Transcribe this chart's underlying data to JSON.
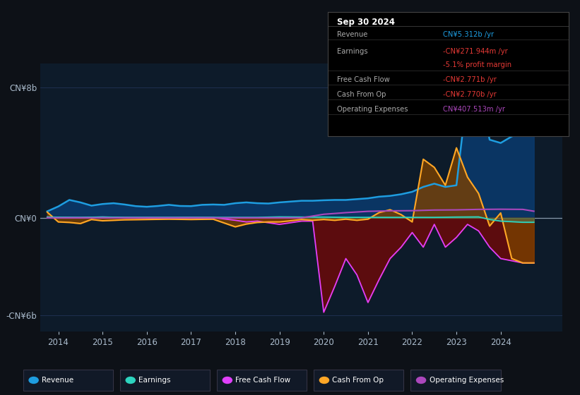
{
  "bg_color": "#0d1117",
  "plot_bg_color": "#0d1b2a",
  "legend_bg_color": "#111927",
  "grid_color": "#1e3050",
  "yticks_labels": [
    "CN¥8b",
    "CN¥0",
    "-CN¥6b"
  ],
  "yticks_values": [
    8000000000,
    0,
    -6000000000
  ],
  "ylim": [
    -7000000000,
    9500000000
  ],
  "xlim_start": 2013.6,
  "xlim_end": 2025.4,
  "xticks": [
    2014,
    2015,
    2016,
    2017,
    2018,
    2019,
    2020,
    2021,
    2022,
    2023,
    2024
  ],
  "legend": [
    {
      "label": "Revenue",
      "color": "#1e9de0"
    },
    {
      "label": "Earnings",
      "color": "#2dd4bf"
    },
    {
      "label": "Free Cash Flow",
      "color": "#e040fb"
    },
    {
      "label": "Cash From Op",
      "color": "#ffa726"
    },
    {
      "label": "Operating Expenses",
      "color": "#ab47bc"
    }
  ],
  "tooltip": {
    "date": "Sep 30 2024",
    "rows": [
      {
        "label": "Revenue",
        "value": "CN¥5.312b /yr",
        "value_color": "#1e9de0",
        "sub": null
      },
      {
        "label": "Earnings",
        "value": "-CN¥271.944m /yr",
        "value_color": "#e53935",
        "sub": "-5.1% profit margin",
        "sub_color": "#e53935"
      },
      {
        "label": "Free Cash Flow",
        "value": "-CN¥2.771b /yr",
        "value_color": "#e53935",
        "sub": null
      },
      {
        "label": "Cash From Op",
        "value": "-CN¥2.770b /yr",
        "value_color": "#e53935",
        "sub": null
      },
      {
        "label": "Operating Expenses",
        "value": "CN¥407.513m /yr",
        "value_color": "#ab47bc",
        "sub": null
      }
    ]
  },
  "revenue_x": [
    2013.75,
    2014.0,
    2014.25,
    2014.5,
    2014.75,
    2015.0,
    2015.25,
    2015.5,
    2015.75,
    2016.0,
    2016.25,
    2016.5,
    2016.75,
    2017.0,
    2017.25,
    2017.5,
    2017.75,
    2018.0,
    2018.25,
    2018.5,
    2018.75,
    2019.0,
    2019.25,
    2019.5,
    2019.75,
    2020.0,
    2020.25,
    2020.5,
    2020.75,
    2021.0,
    2021.25,
    2021.5,
    2021.75,
    2022.0,
    2022.25,
    2022.5,
    2022.75,
    2023.0,
    2023.25,
    2023.5,
    2023.75,
    2024.0,
    2024.25,
    2024.5,
    2024.75
  ],
  "revenue_y": [
    400000000,
    700000000,
    1100000000,
    950000000,
    750000000,
    850000000,
    900000000,
    820000000,
    720000000,
    680000000,
    730000000,
    800000000,
    730000000,
    720000000,
    800000000,
    820000000,
    800000000,
    900000000,
    950000000,
    900000000,
    880000000,
    950000000,
    1000000000,
    1050000000,
    1050000000,
    1080000000,
    1100000000,
    1100000000,
    1150000000,
    1200000000,
    1300000000,
    1350000000,
    1450000000,
    1600000000,
    1900000000,
    2100000000,
    1900000000,
    2000000000,
    7800000000,
    8200000000,
    4800000000,
    4600000000,
    5000000000,
    5312000000,
    5312000000
  ],
  "earnings_x": [
    2013.75,
    2014.0,
    2014.5,
    2015.0,
    2015.5,
    2016.0,
    2016.5,
    2017.0,
    2017.5,
    2018.0,
    2018.5,
    2019.0,
    2019.5,
    2020.0,
    2020.5,
    2021.0,
    2021.5,
    2022.0,
    2022.5,
    2023.0,
    2023.5,
    2023.75,
    2024.0,
    2024.5,
    2024.75
  ],
  "earnings_y": [
    50000000,
    40000000,
    30000000,
    50000000,
    30000000,
    30000000,
    30000000,
    30000000,
    30000000,
    30000000,
    30000000,
    60000000,
    50000000,
    50000000,
    30000000,
    30000000,
    30000000,
    30000000,
    30000000,
    50000000,
    60000000,
    -100000000,
    -200000000,
    -271944000,
    -271944000
  ],
  "fcf_x": [
    2013.75,
    2014.0,
    2014.5,
    2015.0,
    2015.5,
    2016.0,
    2016.5,
    2017.0,
    2017.5,
    2018.0,
    2018.25,
    2018.5,
    2019.0,
    2019.25,
    2019.5,
    2019.75,
    2020.0,
    2020.25,
    2020.5,
    2020.75,
    2021.0,
    2021.25,
    2021.5,
    2021.75,
    2022.0,
    2022.25,
    2022.5,
    2022.75,
    2023.0,
    2023.25,
    2023.5,
    2023.75,
    2024.0,
    2024.5,
    2024.75
  ],
  "fcf_y": [
    50000000,
    30000000,
    20000000,
    50000000,
    20000000,
    20000000,
    20000000,
    30000000,
    20000000,
    -150000000,
    -250000000,
    -200000000,
    -400000000,
    -300000000,
    -200000000,
    -200000000,
    -5800000000,
    -4200000000,
    -2500000000,
    -3500000000,
    -5200000000,
    -3800000000,
    -2500000000,
    -1800000000,
    -900000000,
    -1800000000,
    -400000000,
    -1800000000,
    -1200000000,
    -400000000,
    -800000000,
    -1800000000,
    -2500000000,
    -2771000000,
    -2771000000
  ],
  "cfo_x": [
    2013.75,
    2014.0,
    2014.25,
    2014.5,
    2014.75,
    2015.0,
    2015.5,
    2016.0,
    2016.5,
    2017.0,
    2017.5,
    2018.0,
    2018.25,
    2018.5,
    2018.75,
    2019.0,
    2019.25,
    2019.5,
    2019.75,
    2020.0,
    2020.25,
    2020.5,
    2020.75,
    2021.0,
    2021.25,
    2021.5,
    2021.75,
    2022.0,
    2022.25,
    2022.5,
    2022.75,
    2023.0,
    2023.25,
    2023.5,
    2023.75,
    2024.0,
    2024.25,
    2024.5,
    2024.75
  ],
  "cfo_y": [
    350000000,
    -250000000,
    -280000000,
    -350000000,
    -100000000,
    -180000000,
    -120000000,
    -100000000,
    -80000000,
    -100000000,
    -80000000,
    -550000000,
    -380000000,
    -280000000,
    -250000000,
    -250000000,
    -180000000,
    -100000000,
    -150000000,
    -100000000,
    -150000000,
    -80000000,
    -150000000,
    -80000000,
    320000000,
    500000000,
    200000000,
    -250000000,
    3600000000,
    3100000000,
    2000000000,
    4300000000,
    2500000000,
    1500000000,
    -500000000,
    300000000,
    -2500000000,
    -2770000000,
    -2770000000
  ],
  "opex_x": [
    2013.75,
    2014.0,
    2015.0,
    2016.0,
    2017.0,
    2018.0,
    2019.0,
    2019.5,
    2020.0,
    2020.5,
    2021.0,
    2021.5,
    2022.0,
    2022.5,
    2023.0,
    2023.5,
    2024.0,
    2024.5,
    2024.75
  ],
  "opex_y": [
    0,
    0,
    0,
    0,
    0,
    0,
    0,
    0,
    220000000,
    320000000,
    400000000,
    430000000,
    440000000,
    480000000,
    490000000,
    520000000,
    530000000,
    520000000,
    407513000
  ]
}
